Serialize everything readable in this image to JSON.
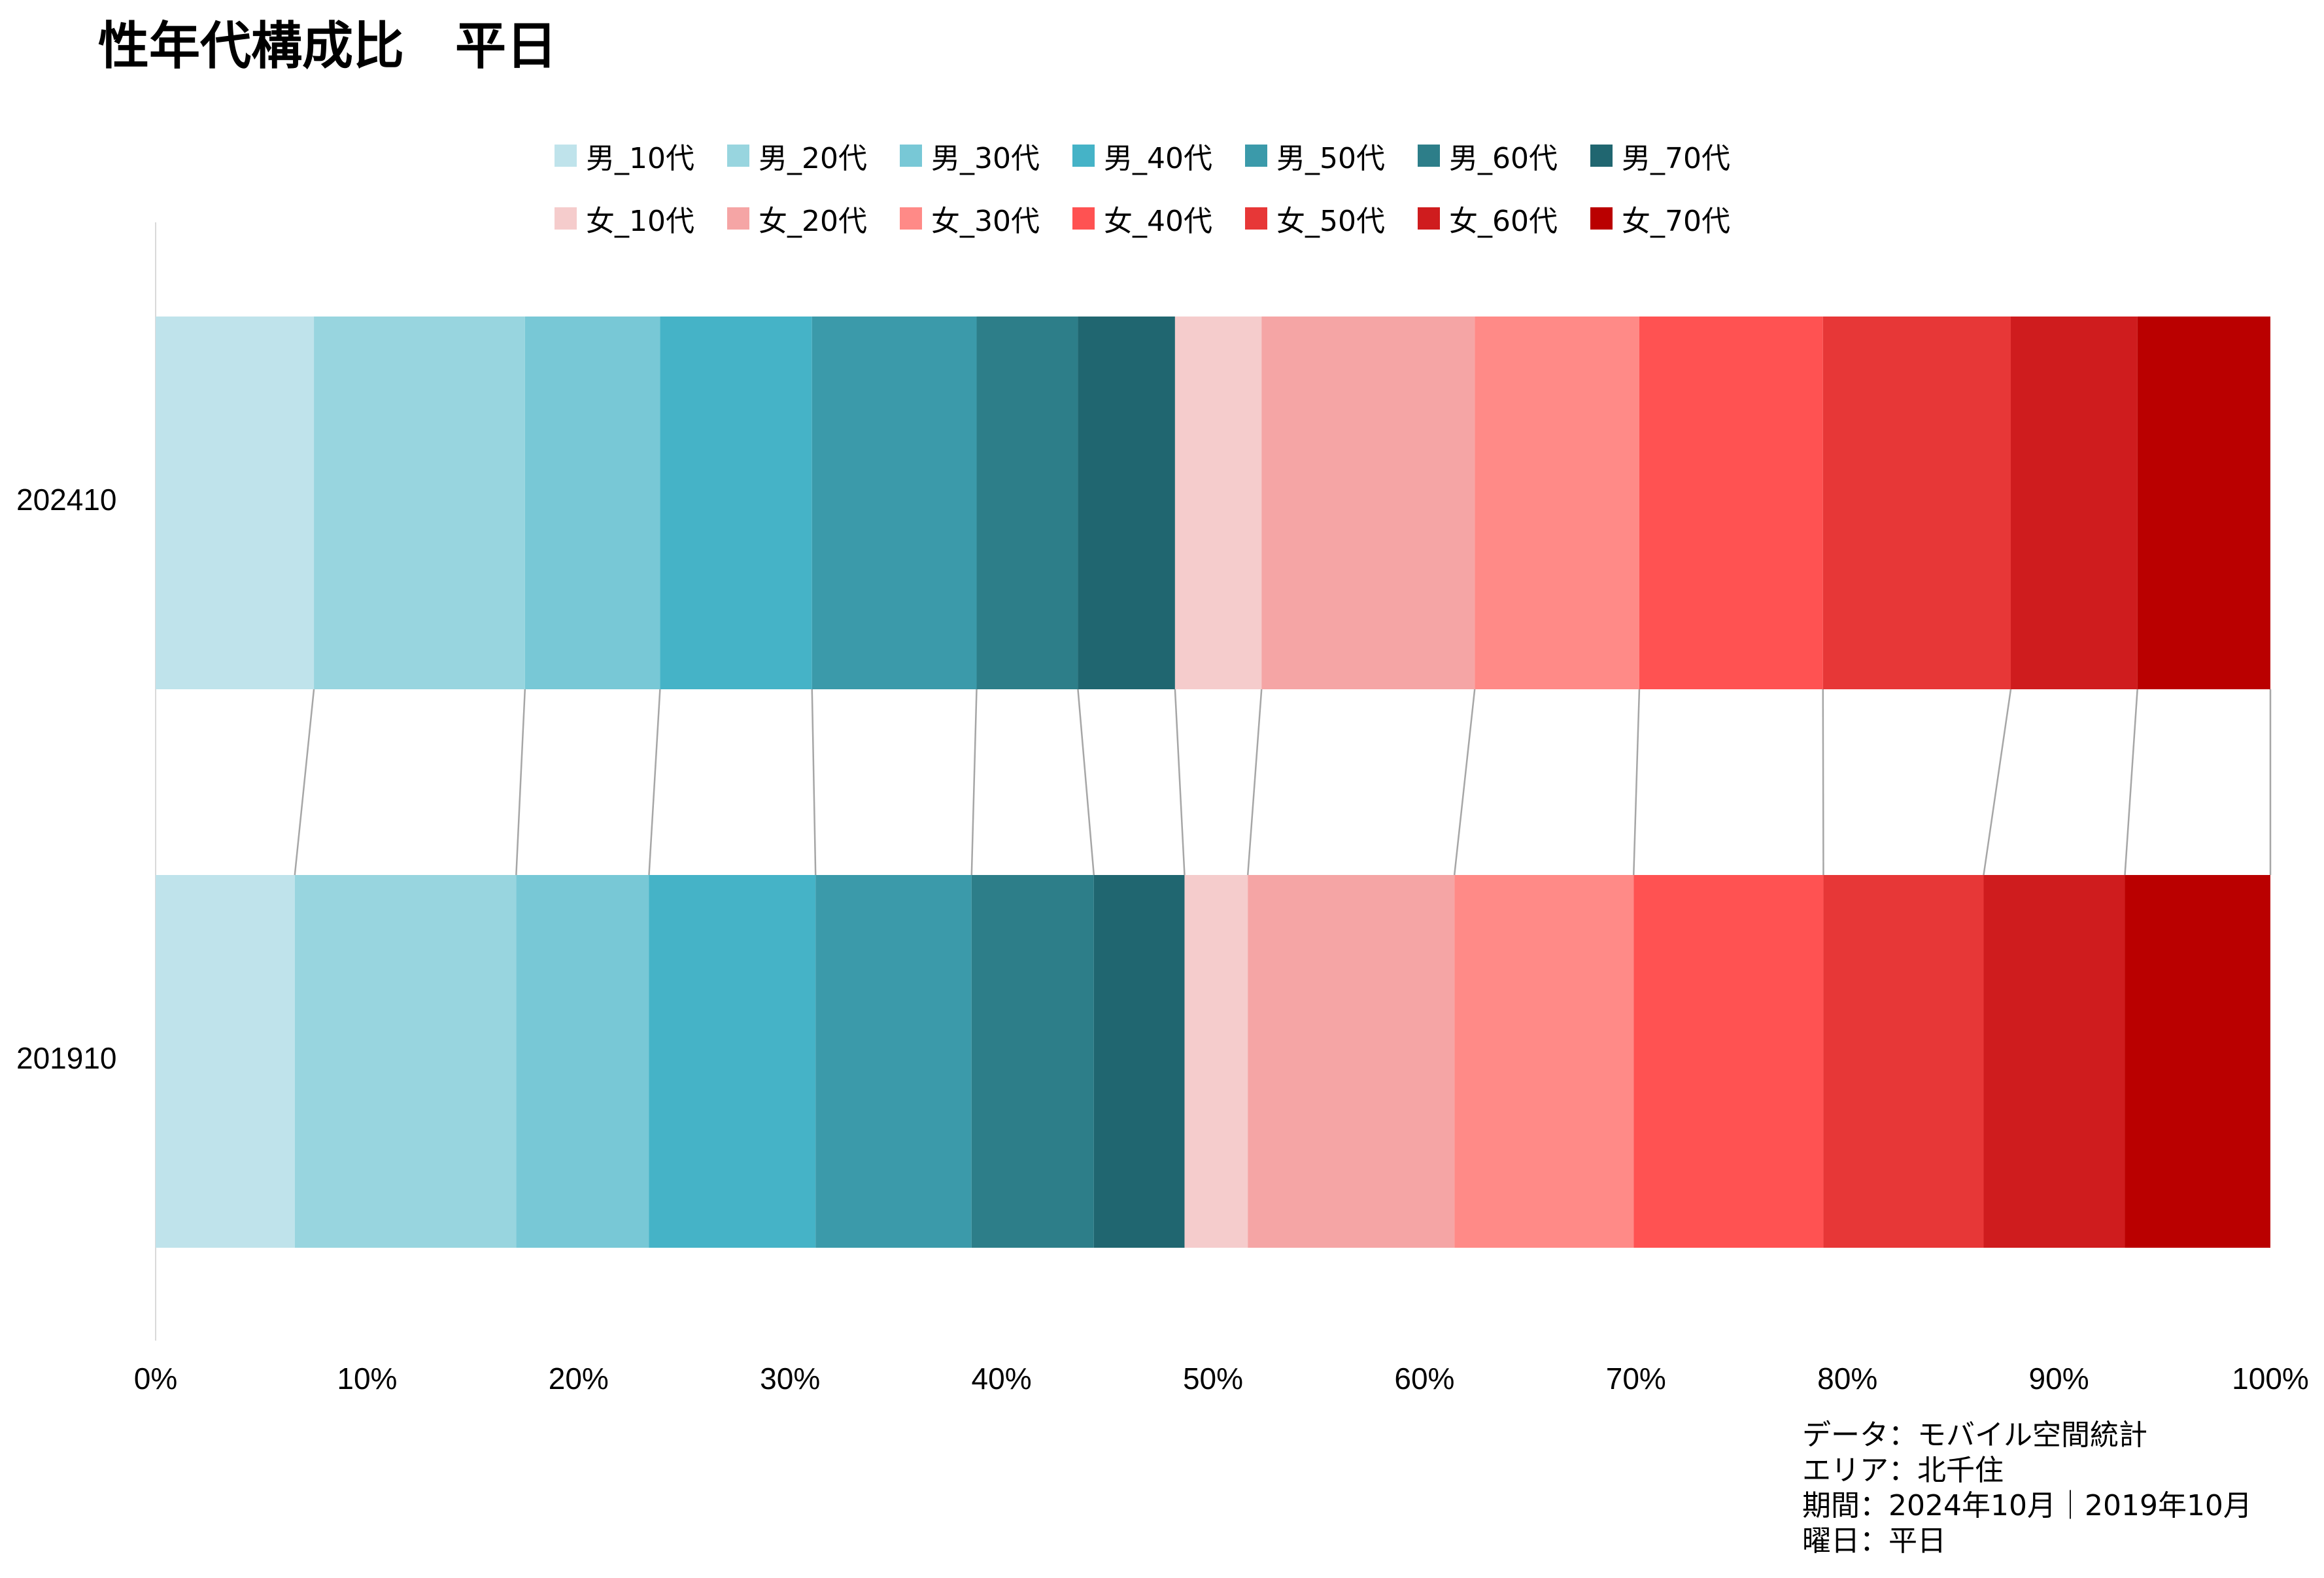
{
  "chart_data": {
    "type": "bar",
    "orientation": "horizontal",
    "stacked": "percent",
    "title": "性年代構成比　平日",
    "categories": [
      "202410",
      "201910"
    ],
    "series": [
      {
        "name": "男_10代",
        "color": "#bfe3eb",
        "values": [
          7.5,
          6.6
        ]
      },
      {
        "name": "男_20代",
        "color": "#98d5df",
        "values": [
          10.0,
          10.5
        ]
      },
      {
        "name": "男_30代",
        "color": "#78c8d6",
        "values": [
          6.4,
          6.3
        ]
      },
      {
        "name": "男_40代",
        "color": "#45b3c7",
        "values": [
          7.2,
          7.9
        ]
      },
      {
        "name": "男_50代",
        "color": "#3b9aaa",
        "values": [
          7.8,
          7.4
        ]
      },
      {
        "name": "男_60代",
        "color": "#2d7e89",
        "values": [
          4.8,
          5.8
        ]
      },
      {
        "name": "男_70代",
        "color": "#206670",
        "values": [
          4.6,
          4.3
        ]
      },
      {
        "name": "女_10代",
        "color": "#f5cccc",
        "values": [
          4.1,
          3.0
        ]
      },
      {
        "name": "女_20代",
        "color": "#f5a5a5",
        "values": [
          10.1,
          9.8
        ]
      },
      {
        "name": "女_30代",
        "color": "#ff8a87",
        "values": [
          7.8,
          8.5
        ]
      },
      {
        "name": "女_40代",
        "color": "#ff5252",
        "values": [
          8.7,
          9.0
        ]
      },
      {
        "name": "女_50代",
        "color": "#e73737",
        "values": [
          8.9,
          7.6
        ]
      },
      {
        "name": "女_60代",
        "color": "#cf1c1e",
        "values": [
          6.0,
          6.7
        ]
      },
      {
        "name": "女_70代",
        "color": "#ba0000",
        "values": [
          6.3,
          6.9
        ]
      }
    ],
    "xlim": [
      0,
      100
    ],
    "x_ticks": [
      "0%",
      "10%",
      "20%",
      "30%",
      "40%",
      "50%",
      "60%",
      "70%",
      "80%",
      "90%",
      "100%"
    ],
    "legend_position": "top",
    "connector_lines": true,
    "grid": false
  },
  "caption": [
    "データ：モバイル空間統計",
    "エリア：北千住",
    "期間：2024年10月｜2019年10月",
    "曜日：平日"
  ]
}
